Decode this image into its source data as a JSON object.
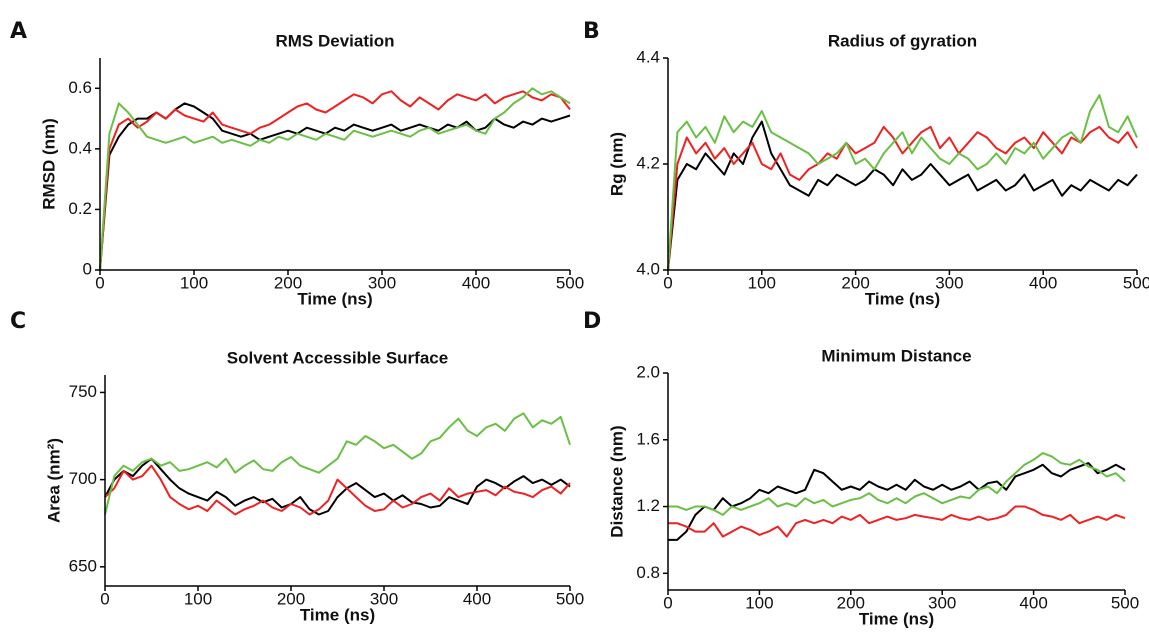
{
  "chart_data": [
    {
      "type": "line",
      "label": "A",
      "title": "RMS Deviation",
      "x_label": "Time (ns)",
      "y_label": "RMSD (nm)",
      "xlim": [
        0,
        500
      ],
      "xticks": [
        0,
        100,
        200,
        300,
        400,
        500
      ],
      "ylim": [
        0,
        0.7
      ],
      "yticks": [
        0,
        0.2,
        0.4,
        0.6
      ],
      "x": [
        0,
        10,
        20,
        30,
        40,
        50,
        60,
        70,
        80,
        90,
        100,
        110,
        120,
        130,
        140,
        150,
        160,
        170,
        180,
        190,
        200,
        210,
        220,
        230,
        240,
        250,
        260,
        270,
        280,
        290,
        300,
        310,
        320,
        330,
        340,
        350,
        360,
        370,
        380,
        390,
        400,
        410,
        420,
        430,
        440,
        450,
        460,
        470,
        480,
        490,
        500
      ],
      "series": [
        {
          "color": "#000000",
          "values": [
            0,
            0.38,
            0.44,
            0.48,
            0.5,
            0.5,
            0.52,
            0.5,
            0.53,
            0.55,
            0.54,
            0.52,
            0.5,
            0.46,
            0.45,
            0.44,
            0.45,
            0.43,
            0.44,
            0.45,
            0.46,
            0.45,
            0.47,
            0.46,
            0.45,
            0.47,
            0.46,
            0.48,
            0.47,
            0.46,
            0.47,
            0.48,
            0.46,
            0.47,
            0.48,
            0.47,
            0.46,
            0.48,
            0.47,
            0.49,
            0.46,
            0.47,
            0.5,
            0.48,
            0.47,
            0.49,
            0.48,
            0.5,
            0.49,
            0.5,
            0.51
          ]
        },
        {
          "color": "#ee2222",
          "values": [
            0,
            0.4,
            0.48,
            0.5,
            0.47,
            0.49,
            0.52,
            0.5,
            0.53,
            0.51,
            0.5,
            0.49,
            0.52,
            0.48,
            0.47,
            0.46,
            0.45,
            0.47,
            0.48,
            0.5,
            0.52,
            0.54,
            0.55,
            0.53,
            0.52,
            0.54,
            0.56,
            0.58,
            0.57,
            0.55,
            0.58,
            0.59,
            0.56,
            0.54,
            0.57,
            0.55,
            0.53,
            0.56,
            0.58,
            0.57,
            0.56,
            0.58,
            0.55,
            0.57,
            0.58,
            0.59,
            0.57,
            0.56,
            0.58,
            0.57,
            0.53
          ]
        },
        {
          "color": "#6abf45",
          "values": [
            0,
            0.45,
            0.55,
            0.52,
            0.48,
            0.44,
            0.43,
            0.42,
            0.43,
            0.44,
            0.42,
            0.43,
            0.44,
            0.42,
            0.43,
            0.42,
            0.41,
            0.43,
            0.42,
            0.44,
            0.43,
            0.45,
            0.44,
            0.43,
            0.45,
            0.44,
            0.43,
            0.46,
            0.45,
            0.44,
            0.45,
            0.46,
            0.45,
            0.44,
            0.46,
            0.47,
            0.45,
            0.46,
            0.47,
            0.48,
            0.46,
            0.45,
            0.5,
            0.52,
            0.55,
            0.57,
            0.6,
            0.58,
            0.59,
            0.57,
            0.55
          ]
        }
      ]
    },
    {
      "type": "line",
      "label": "B",
      "title": "Radius of gyration",
      "x_label": "Time (ns)",
      "y_label": "Rg (nm)",
      "xlim": [
        0,
        500
      ],
      "xticks": [
        0,
        100,
        200,
        300,
        400,
        500
      ],
      "ylim": [
        4.0,
        4.4
      ],
      "yticks": [
        {
          "value": 4,
          "label": "4.0"
        },
        4.2,
        4.4
      ],
      "x": [
        0,
        10,
        20,
        30,
        40,
        50,
        60,
        70,
        80,
        90,
        100,
        110,
        120,
        130,
        140,
        150,
        160,
        170,
        180,
        190,
        200,
        210,
        220,
        230,
        240,
        250,
        260,
        270,
        280,
        290,
        300,
        310,
        320,
        330,
        340,
        350,
        360,
        370,
        380,
        390,
        400,
        410,
        420,
        430,
        440,
        450,
        460,
        470,
        480,
        490,
        500
      ],
      "series": [
        {
          "color": "#000000",
          "values": [
            4.0,
            4.17,
            4.2,
            4.19,
            4.22,
            4.2,
            4.18,
            4.22,
            4.2,
            4.25,
            4.28,
            4.22,
            4.19,
            4.16,
            4.15,
            4.14,
            4.17,
            4.16,
            4.18,
            4.17,
            4.16,
            4.17,
            4.19,
            4.18,
            4.16,
            4.19,
            4.17,
            4.18,
            4.2,
            4.18,
            4.16,
            4.17,
            4.18,
            4.15,
            4.16,
            4.17,
            4.15,
            4.16,
            4.18,
            4.15,
            4.16,
            4.17,
            4.14,
            4.16,
            4.15,
            4.17,
            4.16,
            4.15,
            4.17,
            4.16,
            4.18
          ]
        },
        {
          "color": "#ee2222",
          "values": [
            4.0,
            4.2,
            4.25,
            4.22,
            4.24,
            4.21,
            4.23,
            4.2,
            4.22,
            4.24,
            4.2,
            4.19,
            4.22,
            4.18,
            4.17,
            4.19,
            4.2,
            4.22,
            4.21,
            4.24,
            4.22,
            4.23,
            4.24,
            4.27,
            4.25,
            4.22,
            4.24,
            4.26,
            4.27,
            4.23,
            4.25,
            4.22,
            4.24,
            4.26,
            4.25,
            4.23,
            4.22,
            4.24,
            4.25,
            4.23,
            4.26,
            4.24,
            4.22,
            4.25,
            4.24,
            4.26,
            4.27,
            4.25,
            4.24,
            4.26,
            4.23
          ]
        },
        {
          "color": "#6abf45",
          "values": [
            4.0,
            4.26,
            4.28,
            4.25,
            4.27,
            4.24,
            4.29,
            4.26,
            4.28,
            4.27,
            4.3,
            4.26,
            4.25,
            4.24,
            4.23,
            4.22,
            4.2,
            4.21,
            4.22,
            4.24,
            4.2,
            4.21,
            4.19,
            4.22,
            4.24,
            4.26,
            4.22,
            4.25,
            4.23,
            4.21,
            4.2,
            4.22,
            4.21,
            4.19,
            4.2,
            4.22,
            4.2,
            4.23,
            4.22,
            4.24,
            4.21,
            4.23,
            4.25,
            4.26,
            4.24,
            4.3,
            4.33,
            4.27,
            4.26,
            4.29,
            4.25
          ]
        }
      ]
    },
    {
      "type": "line",
      "label": "C",
      "title": "Solvent Accessible Surface",
      "x_label": "Time (ns)",
      "y_label": "Area (nm²)",
      "xlim": [
        0,
        500
      ],
      "xticks": [
        0,
        100,
        200,
        300,
        400,
        500
      ],
      "ylim": [
        639,
        760
      ],
      "yticks": [
        650,
        700,
        750
      ],
      "x": [
        0,
        10,
        20,
        30,
        40,
        50,
        60,
        70,
        80,
        90,
        100,
        110,
        120,
        130,
        140,
        150,
        160,
        170,
        180,
        190,
        200,
        210,
        220,
        230,
        240,
        250,
        260,
        270,
        280,
        290,
        300,
        310,
        320,
        330,
        340,
        350,
        360,
        370,
        380,
        390,
        400,
        410,
        420,
        430,
        440,
        450,
        460,
        470,
        480,
        490,
        500
      ],
      "series": [
        {
          "color": "#000000",
          "values": [
            690,
            700,
            705,
            702,
            708,
            712,
            706,
            700,
            695,
            692,
            690,
            688,
            693,
            690,
            685,
            688,
            690,
            687,
            689,
            684,
            686,
            690,
            683,
            680,
            682,
            690,
            695,
            698,
            694,
            690,
            692,
            688,
            691,
            687,
            686,
            684,
            685,
            690,
            688,
            686,
            696,
            700,
            698,
            695,
            699,
            702,
            698,
            700,
            697,
            700,
            696
          ]
        },
        {
          "color": "#ee2222",
          "values": [
            690,
            695,
            705,
            700,
            702,
            708,
            700,
            690,
            686,
            683,
            685,
            682,
            688,
            684,
            680,
            683,
            685,
            688,
            684,
            682,
            686,
            684,
            680,
            683,
            688,
            700,
            695,
            690,
            685,
            682,
            683,
            688,
            684,
            686,
            690,
            692,
            688,
            695,
            690,
            692,
            693,
            694,
            691,
            696,
            693,
            692,
            690,
            694,
            696,
            692,
            698
          ]
        },
        {
          "color": "#6abf45",
          "values": [
            680,
            702,
            708,
            705,
            710,
            712,
            708,
            710,
            705,
            706,
            708,
            710,
            707,
            712,
            704,
            708,
            711,
            706,
            705,
            710,
            713,
            708,
            706,
            704,
            708,
            712,
            722,
            720,
            725,
            722,
            718,
            720,
            716,
            712,
            715,
            722,
            724,
            730,
            735,
            728,
            725,
            730,
            732,
            728,
            735,
            738,
            730,
            734,
            732,
            736,
            720
          ]
        }
      ]
    },
    {
      "type": "line",
      "label": "D",
      "title": "Minimum Distance",
      "x_label": "Time (ns)",
      "y_label": "Distance (nm)",
      "xlim": [
        0,
        500
      ],
      "xticks": [
        0,
        100,
        200,
        300,
        400,
        500
      ],
      "ylim": [
        0.7,
        2.0
      ],
      "yticks": [
        {
          "value": 2,
          "label": "2.0"
        },
        1.6,
        1.2,
        0.8
      ],
      "x": [
        0,
        10,
        20,
        30,
        40,
        50,
        60,
        70,
        80,
        90,
        100,
        110,
        120,
        130,
        140,
        150,
        160,
        170,
        180,
        190,
        200,
        210,
        220,
        230,
        240,
        250,
        260,
        270,
        280,
        290,
        300,
        310,
        320,
        330,
        340,
        350,
        360,
        370,
        380,
        390,
        400,
        410,
        420,
        430,
        440,
        450,
        460,
        470,
        480,
        490,
        500
      ],
      "series": [
        {
          "color": "#000000",
          "values": [
            1.0,
            1.0,
            1.05,
            1.15,
            1.2,
            1.18,
            1.25,
            1.2,
            1.22,
            1.25,
            1.3,
            1.28,
            1.32,
            1.3,
            1.28,
            1.3,
            1.42,
            1.4,
            1.35,
            1.3,
            1.32,
            1.3,
            1.35,
            1.32,
            1.3,
            1.33,
            1.3,
            1.36,
            1.32,
            1.3,
            1.33,
            1.3,
            1.32,
            1.35,
            1.3,
            1.34,
            1.35,
            1.3,
            1.38,
            1.4,
            1.42,
            1.45,
            1.4,
            1.38,
            1.42,
            1.44,
            1.46,
            1.4,
            1.42,
            1.45,
            1.42
          ]
        },
        {
          "color": "#ee2222",
          "values": [
            1.1,
            1.1,
            1.08,
            1.05,
            1.05,
            1.1,
            1.02,
            1.05,
            1.08,
            1.06,
            1.03,
            1.05,
            1.08,
            1.02,
            1.1,
            1.12,
            1.1,
            1.12,
            1.1,
            1.14,
            1.12,
            1.15,
            1.1,
            1.12,
            1.14,
            1.12,
            1.13,
            1.15,
            1.14,
            1.13,
            1.12,
            1.15,
            1.13,
            1.12,
            1.14,
            1.12,
            1.13,
            1.15,
            1.2,
            1.2,
            1.18,
            1.15,
            1.14,
            1.12,
            1.15,
            1.1,
            1.12,
            1.14,
            1.12,
            1.15,
            1.13
          ]
        },
        {
          "color": "#6abf45",
          "values": [
            1.2,
            1.2,
            1.18,
            1.2,
            1.2,
            1.18,
            1.15,
            1.2,
            1.18,
            1.2,
            1.22,
            1.25,
            1.2,
            1.22,
            1.2,
            1.25,
            1.22,
            1.24,
            1.2,
            1.22,
            1.24,
            1.25,
            1.28,
            1.24,
            1.22,
            1.25,
            1.22,
            1.26,
            1.28,
            1.25,
            1.22,
            1.24,
            1.26,
            1.25,
            1.3,
            1.32,
            1.28,
            1.35,
            1.4,
            1.45,
            1.48,
            1.52,
            1.5,
            1.46,
            1.45,
            1.48,
            1.44,
            1.42,
            1.38,
            1.4,
            1.35
          ]
        }
      ]
    }
  ]
}
